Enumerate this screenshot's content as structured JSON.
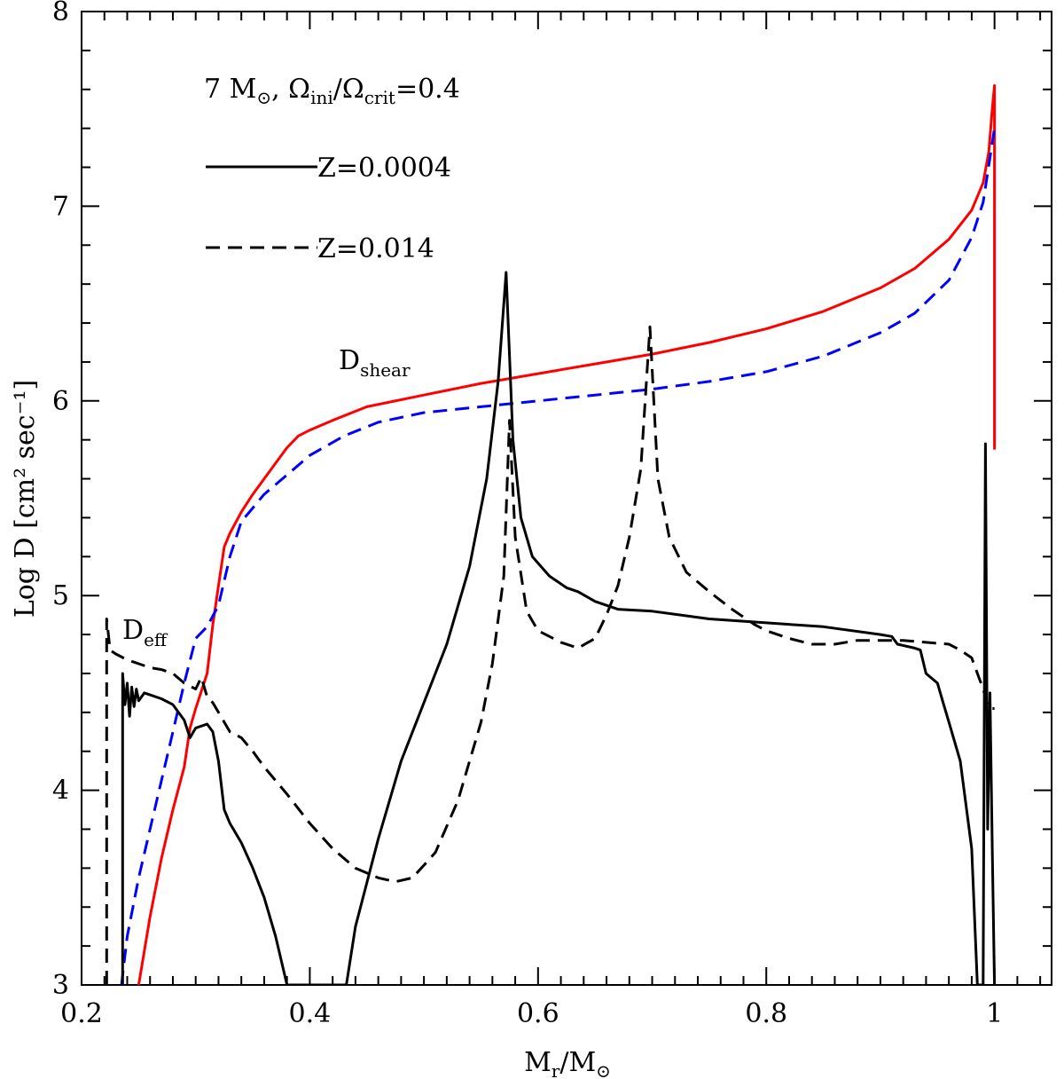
{
  "chart_data": {
    "type": "line",
    "title": "",
    "xlabel": {
      "main": "M",
      "sub": "r",
      "rest": "/M",
      "sub2": "⊙"
    },
    "ylabel": {
      "text": "Log D [cm² sec⁻¹]"
    },
    "xlim": [
      0.2,
      1.05
    ],
    "ylim": [
      3,
      8
    ],
    "xticks": [
      {
        "value": 0.2,
        "label": "0.2"
      },
      {
        "value": 0.4,
        "label": "0.4"
      },
      {
        "value": 0.6,
        "label": "0.6"
      },
      {
        "value": 0.8,
        "label": "0.8"
      },
      {
        "value": 1.0,
        "label": "1"
      }
    ],
    "yticks": [
      {
        "value": 3,
        "label": "3"
      },
      {
        "value": 4,
        "label": "4"
      },
      {
        "value": 5,
        "label": "5"
      },
      {
        "value": 6,
        "label": "6"
      },
      {
        "value": 7,
        "label": "7"
      },
      {
        "value": 8,
        "label": "8"
      }
    ],
    "legend": {
      "title": {
        "a": "7 M",
        "a_sub": "⊙",
        "b": ", Ω",
        "b_sub": "ini",
        "c": "/Ω",
        "c_sub": "crit",
        "d": "=0.4"
      },
      "entries": [
        {
          "label": "Z=0.0004",
          "style": "solid"
        },
        {
          "label": "Z=0.014",
          "style": "dashed"
        }
      ]
    },
    "annotations": {
      "shear": {
        "main": "D",
        "sub": "shear"
      },
      "eff": {
        "main": "D",
        "sub": "eff"
      }
    },
    "series": [
      {
        "name": "D_shear Z=0.0004",
        "color": "#ff0000",
        "dash": "solid",
        "points": [
          [
            0.25,
            3.0
          ],
          [
            0.26,
            3.35
          ],
          [
            0.27,
            3.65
          ],
          [
            0.28,
            3.9
          ],
          [
            0.29,
            4.12
          ],
          [
            0.295,
            4.32
          ],
          [
            0.3,
            4.42
          ],
          [
            0.31,
            4.6
          ],
          [
            0.315,
            4.85
          ],
          [
            0.32,
            5.05
          ],
          [
            0.325,
            5.25
          ],
          [
            0.33,
            5.32
          ],
          [
            0.34,
            5.43
          ],
          [
            0.35,
            5.52
          ],
          [
            0.36,
            5.6
          ],
          [
            0.37,
            5.68
          ],
          [
            0.38,
            5.76
          ],
          [
            0.39,
            5.82
          ],
          [
            0.4,
            5.85
          ],
          [
            0.42,
            5.9
          ],
          [
            0.45,
            5.97
          ],
          [
            0.5,
            6.03
          ],
          [
            0.55,
            6.09
          ],
          [
            0.6,
            6.14
          ],
          [
            0.65,
            6.19
          ],
          [
            0.7,
            6.24
          ],
          [
            0.75,
            6.3
          ],
          [
            0.8,
            6.37
          ],
          [
            0.85,
            6.46
          ],
          [
            0.9,
            6.58
          ],
          [
            0.93,
            6.68
          ],
          [
            0.96,
            6.83
          ],
          [
            0.98,
            6.98
          ],
          [
            0.99,
            7.12
          ],
          [
            0.995,
            7.28
          ],
          [
            0.998,
            7.5
          ],
          [
            1.0,
            7.62
          ],
          [
            1.0,
            5.75
          ]
        ]
      },
      {
        "name": "D_shear Z=0.014",
        "color": "#0000ff",
        "dash": "dashed",
        "points": [
          [
            0.235,
            3.0
          ],
          [
            0.24,
            3.25
          ],
          [
            0.25,
            3.55
          ],
          [
            0.26,
            3.8
          ],
          [
            0.27,
            4.05
          ],
          [
            0.28,
            4.3
          ],
          [
            0.29,
            4.55
          ],
          [
            0.3,
            4.78
          ],
          [
            0.31,
            4.84
          ],
          [
            0.32,
            4.95
          ],
          [
            0.33,
            5.2
          ],
          [
            0.34,
            5.38
          ],
          [
            0.35,
            5.45
          ],
          [
            0.36,
            5.52
          ],
          [
            0.38,
            5.62
          ],
          [
            0.4,
            5.72
          ],
          [
            0.43,
            5.82
          ],
          [
            0.46,
            5.89
          ],
          [
            0.5,
            5.94
          ],
          [
            0.55,
            5.97
          ],
          [
            0.6,
            6.0
          ],
          [
            0.65,
            6.03
          ],
          [
            0.7,
            6.06
          ],
          [
            0.75,
            6.1
          ],
          [
            0.8,
            6.15
          ],
          [
            0.85,
            6.23
          ],
          [
            0.9,
            6.35
          ],
          [
            0.93,
            6.45
          ],
          [
            0.96,
            6.62
          ],
          [
            0.98,
            6.84
          ],
          [
            0.99,
            7.02
          ],
          [
            1.0,
            7.4
          ]
        ]
      },
      {
        "name": "D_eff Z=0.0004",
        "color": "#000000",
        "dash": "solid",
        "points": [
          [
            0.236,
            3.0
          ],
          [
            0.236,
            4.6
          ],
          [
            0.238,
            4.44
          ],
          [
            0.24,
            4.55
          ],
          [
            0.242,
            4.38
          ],
          [
            0.244,
            4.53
          ],
          [
            0.246,
            4.43
          ],
          [
            0.248,
            4.52
          ],
          [
            0.25,
            4.46
          ],
          [
            0.255,
            4.5
          ],
          [
            0.26,
            4.49
          ],
          [
            0.27,
            4.47
          ],
          [
            0.28,
            4.44
          ],
          [
            0.29,
            4.36
          ],
          [
            0.295,
            4.27
          ],
          [
            0.3,
            4.32
          ],
          [
            0.31,
            4.34
          ],
          [
            0.315,
            4.3
          ],
          [
            0.32,
            4.15
          ],
          [
            0.325,
            3.9
          ],
          [
            0.33,
            3.83
          ],
          [
            0.34,
            3.73
          ],
          [
            0.35,
            3.6
          ],
          [
            0.36,
            3.45
          ],
          [
            0.37,
            3.25
          ],
          [
            0.38,
            3.0
          ],
          [
            0.38,
            3.0
          ],
          [
            0.432,
            3.0
          ],
          [
            0.44,
            3.3
          ],
          [
            0.46,
            3.75
          ],
          [
            0.48,
            4.15
          ],
          [
            0.5,
            4.45
          ],
          [
            0.52,
            4.75
          ],
          [
            0.54,
            5.15
          ],
          [
            0.555,
            5.6
          ],
          [
            0.565,
            6.1
          ],
          [
            0.572,
            6.66
          ],
          [
            0.578,
            5.8
          ],
          [
            0.585,
            5.4
          ],
          [
            0.595,
            5.2
          ],
          [
            0.61,
            5.1
          ],
          [
            0.625,
            5.04
          ],
          [
            0.635,
            5.02
          ],
          [
            0.65,
            4.97
          ],
          [
            0.67,
            4.93
          ],
          [
            0.7,
            4.92
          ],
          [
            0.75,
            4.88
          ],
          [
            0.8,
            4.86
          ],
          [
            0.85,
            4.84
          ],
          [
            0.9,
            4.8
          ],
          [
            0.91,
            4.79
          ],
          [
            0.915,
            4.75
          ],
          [
            0.93,
            4.73
          ],
          [
            0.935,
            4.72
          ],
          [
            0.94,
            4.6
          ],
          [
            0.95,
            4.55
          ],
          [
            0.955,
            4.45
          ],
          [
            0.96,
            4.35
          ],
          [
            0.97,
            4.15
          ],
          [
            0.98,
            3.7
          ],
          [
            0.985,
            3.0
          ],
          [
            0.99,
            3.0
          ],
          [
            0.992,
            5.78
          ],
          [
            0.994,
            3.8
          ],
          [
            0.996,
            4.5
          ],
          [
            0.998,
            3.7
          ],
          [
            1.0,
            3.0
          ]
        ]
      },
      {
        "name": "D_eff Z=0.014",
        "color": "#000000",
        "dash": "dashed",
        "points": [
          [
            0.222,
            3.0
          ],
          [
            0.222,
            4.88
          ],
          [
            0.225,
            4.72
          ],
          [
            0.23,
            4.7
          ],
          [
            0.24,
            4.67
          ],
          [
            0.25,
            4.65
          ],
          [
            0.26,
            4.63
          ],
          [
            0.27,
            4.62
          ],
          [
            0.28,
            4.6
          ],
          [
            0.29,
            4.55
          ],
          [
            0.3,
            4.52
          ],
          [
            0.305,
            4.58
          ],
          [
            0.31,
            4.48
          ],
          [
            0.315,
            4.45
          ],
          [
            0.32,
            4.4
          ],
          [
            0.33,
            4.3
          ],
          [
            0.34,
            4.27
          ],
          [
            0.35,
            4.2
          ],
          [
            0.36,
            4.12
          ],
          [
            0.38,
            3.98
          ],
          [
            0.4,
            3.83
          ],
          [
            0.42,
            3.7
          ],
          [
            0.44,
            3.6
          ],
          [
            0.46,
            3.55
          ],
          [
            0.475,
            3.53
          ],
          [
            0.49,
            3.55
          ],
          [
            0.51,
            3.68
          ],
          [
            0.53,
            3.95
          ],
          [
            0.55,
            4.35
          ],
          [
            0.56,
            4.65
          ],
          [
            0.57,
            5.1
          ],
          [
            0.575,
            5.9
          ],
          [
            0.58,
            5.3
          ],
          [
            0.59,
            4.92
          ],
          [
            0.6,
            4.82
          ],
          [
            0.62,
            4.76
          ],
          [
            0.635,
            4.73
          ],
          [
            0.65,
            4.78
          ],
          [
            0.66,
            4.9
          ],
          [
            0.67,
            5.05
          ],
          [
            0.68,
            5.3
          ],
          [
            0.69,
            5.65
          ],
          [
            0.698,
            6.38
          ],
          [
            0.705,
            5.6
          ],
          [
            0.715,
            5.3
          ],
          [
            0.73,
            5.12
          ],
          [
            0.75,
            5.02
          ],
          [
            0.77,
            4.93
          ],
          [
            0.79,
            4.85
          ],
          [
            0.8,
            4.82
          ],
          [
            0.82,
            4.78
          ],
          [
            0.84,
            4.75
          ],
          [
            0.86,
            4.75
          ],
          [
            0.88,
            4.77
          ],
          [
            0.9,
            4.77
          ],
          [
            0.92,
            4.77
          ],
          [
            0.94,
            4.76
          ],
          [
            0.96,
            4.75
          ],
          [
            0.97,
            4.72
          ],
          [
            0.98,
            4.68
          ],
          [
            0.99,
            4.52
          ],
          [
            0.995,
            4.42
          ],
          [
            1.0,
            4.42
          ]
        ]
      }
    ]
  }
}
